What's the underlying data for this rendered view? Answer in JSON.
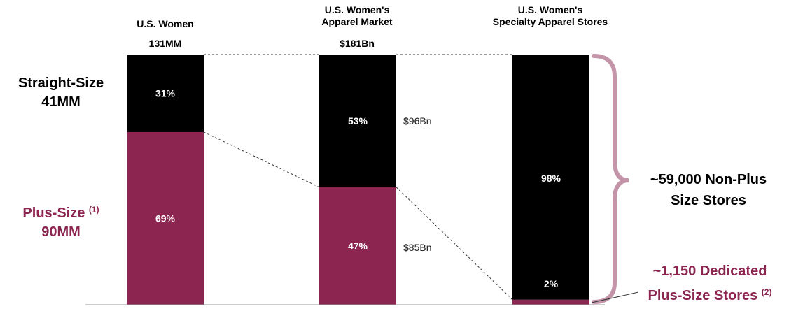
{
  "colors": {
    "straight": "#000000",
    "plus": "#8c2550",
    "brace": "#c495a8",
    "plum_text": "#8c2550"
  },
  "chart_data": {
    "type": "bar",
    "stacked": true,
    "normalized": true,
    "categories": [
      "U.S. Women",
      "U.S. Women's Apparel Market",
      "U.S. Women's Specialty Apparel Stores"
    ],
    "totals": [
      "131MM",
      "$181Bn",
      ""
    ],
    "series": [
      {
        "name": "Plus-Size",
        "values": [
          69,
          47,
          2
        ]
      },
      {
        "name": "Straight-Size",
        "values": [
          31,
          53,
          98
        ]
      }
    ],
    "ylim": [
      0,
      100
    ],
    "grid": false
  },
  "columns": [
    {
      "title_lines": [
        "U.S. Women"
      ],
      "total": "131MM",
      "top_label": "31%",
      "bottom_label": "69%",
      "top_value": "",
      "bottom_value": ""
    },
    {
      "title_lines": [
        "U.S. Women's",
        "Apparel Market"
      ],
      "total": "$181Bn",
      "top_label": "53%",
      "bottom_label": "47%",
      "top_value": "$96Bn",
      "bottom_value": "$85Bn"
    },
    {
      "title_lines": [
        "U.S. Women's",
        "Specialty Apparel Stores"
      ],
      "total": "",
      "top_label": "98%",
      "bottom_label": "2%",
      "top_value": "",
      "bottom_value": ""
    }
  ],
  "left_labels": {
    "straight_line1": "Straight-Size",
    "straight_line2": "41MM",
    "plus_line1": "Plus-Size",
    "plus_note": "(1)",
    "plus_line2": "90MM"
  },
  "right_labels": {
    "nonplus_line1": "~59,000 Non-Plus",
    "nonplus_line2": "Size Stores",
    "dedicated_line1": "~1,150 Dedicated",
    "dedicated_line2": "Plus-Size Stores",
    "dedicated_note": "(2)"
  }
}
